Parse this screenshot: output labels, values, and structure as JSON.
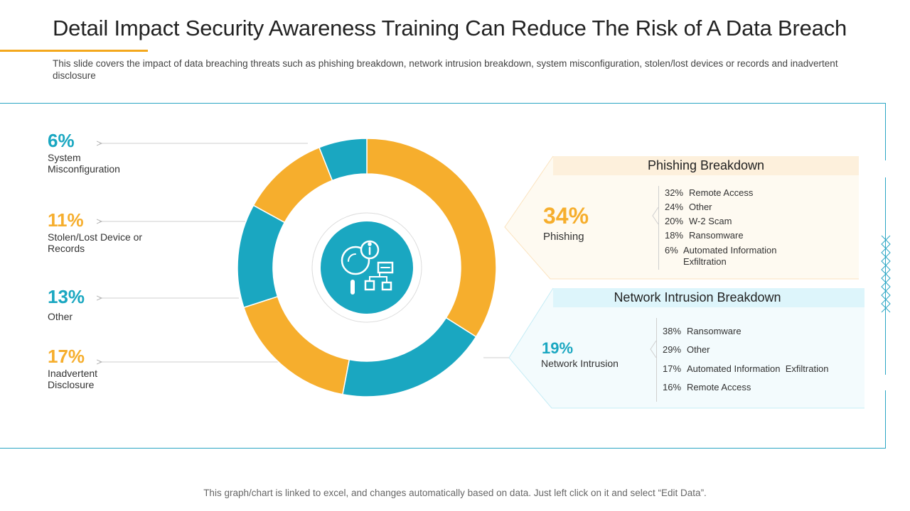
{
  "header": {
    "title": "Detail Impact Security Awareness Training Can Reduce The Risk of A Data Breach",
    "subtitle": "This slide covers the impact of data breaching threats such as phishing breakdown, network intrusion breakdown, system misconfiguration, stolen/lost devices or records and inadvertent disclosure"
  },
  "chart_data": {
    "type": "pie",
    "variant": "donut",
    "slices": [
      {
        "label": "Phishing",
        "value": 34,
        "display": "34%",
        "color": "#f6ae2d"
      },
      {
        "label": "Network Intrusion",
        "value": 19,
        "display": "19%",
        "color": "#1aa7c1"
      },
      {
        "label": "Inadvertent Disclosure",
        "value": 17,
        "display": "17%",
        "color": "#f6ae2d"
      },
      {
        "label": "Other",
        "value": 13,
        "display": "13%",
        "color": "#1aa7c1"
      },
      {
        "label": "Stolen/Lost Device or Records",
        "value": 11,
        "display": "11%",
        "color": "#f6ae2d"
      },
      {
        "label": "System Misconfiguration",
        "value": 6,
        "display": "6%",
        "color": "#1aa7c1"
      }
    ],
    "left_labels": [
      {
        "pct": "6%",
        "label": "System Misconfiguration",
        "color": "teal"
      },
      {
        "pct": "11%",
        "label": "Stolen/Lost Device or Records",
        "color": "orange"
      },
      {
        "pct": "13%",
        "label": "Other",
        "color": "teal"
      },
      {
        "pct": "17%",
        "label": "Inadvertent Disclosure",
        "color": "orange"
      }
    ],
    "phishing_breakdown": {
      "title": "Phishing Breakdown",
      "pct": "34%",
      "label": "Phishing",
      "items": [
        {
          "pct": "32%",
          "label": "Remote Access"
        },
        {
          "pct": "24%",
          "label": "Other"
        },
        {
          "pct": "20%",
          "label": "W-2 Scam"
        },
        {
          "pct": "18%",
          "label": "Ransomware"
        },
        {
          "pct": "6%",
          "label": "Automated Information",
          "label2": "Exfiltration"
        }
      ]
    },
    "network_breakdown": {
      "title": "Network Intrusion Breakdown",
      "pct": "19%",
      "label": "Network Intrusion",
      "items": [
        {
          "pct": "38%",
          "label": "Ransomware"
        },
        {
          "pct": "29%",
          "label": "Other"
        },
        {
          "pct": "17%",
          "label": "Automated Information  Exfiltration"
        },
        {
          "pct": "16%",
          "label": "Remote Access"
        }
      ]
    }
  },
  "icons": {
    "center": "security-analysis-icon"
  },
  "colors": {
    "accent_orange": "#f6ae2d",
    "accent_teal": "#1aa7c1",
    "frame": "#2aa6c4"
  },
  "footer": {
    "note": "This graph/chart is linked to excel,  and changes automatically based on data.  Just left click on it and select “Edit Data”."
  }
}
